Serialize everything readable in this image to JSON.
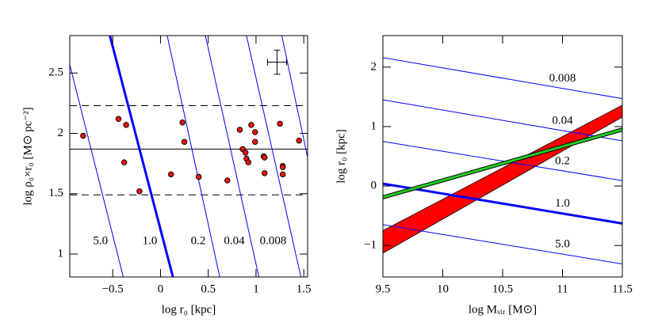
{
  "chart_data": [
    {
      "type": "scatter",
      "xlabel": "log r₀ [kpc]",
      "ylabel": "log ρ₀×r₀ [M⊙ pc⁻²]",
      "xlim": [
        -0.95,
        1.54
      ],
      "ylim": [
        0.81,
        2.81
      ],
      "xticks": [
        {
          "value": -0.5,
          "label": "−0.5"
        },
        0,
        0.5,
        1,
        1.5
      ],
      "yticks": [
        1,
        1.5,
        2,
        2.5
      ],
      "hlines": [
        {
          "y": 1.87,
          "linestyle": "solid"
        },
        {
          "y": 2.23,
          "linestyle": "dashed"
        },
        {
          "y": 1.49,
          "linestyle": "dashed"
        }
      ],
      "series": [
        {
          "name": "5.0",
          "color": "#0000ff",
          "linewidth": 1,
          "x": [
            -0.95,
            -0.39
          ],
          "y": [
            2.57,
            0.81
          ]
        },
        {
          "name": "1.0",
          "color": "#0000ff",
          "linewidth": 3,
          "x": [
            -0.53,
            0.13
          ],
          "y": [
            2.81,
            0.81
          ]
        },
        {
          "name": "0.2",
          "color": "#0000ff",
          "linewidth": 1,
          "x": [
            0.07,
            0.62
          ],
          "y": [
            2.81,
            0.81
          ]
        },
        {
          "name": "0.04",
          "color": "#0000ff",
          "linewidth": 1,
          "x": [
            0.47,
            1.03
          ],
          "y": [
            2.81,
            0.81
          ]
        },
        {
          "name": "0.008",
          "color": "#0000ff",
          "linewidth": 1,
          "x": [
            0.9,
            1.47
          ],
          "y": [
            2.81,
            0.81
          ]
        },
        {
          "color": "#0000ff",
          "linewidth": 1,
          "x": [
            1.27,
            1.54
          ],
          "y": [
            2.81,
            1.8
          ]
        }
      ],
      "points": {
        "color": "#e8140c",
        "x": [
          -0.81,
          -0.44,
          -0.36,
          -0.38,
          -0.22,
          0.11,
          0.23,
          0.25,
          0.4,
          0.7,
          0.83,
          0.86,
          0.89,
          0.9,
          0.92,
          0.95,
          0.99,
          0.99,
          1.08,
          1.09,
          1.09,
          1.25,
          1.28,
          1.28,
          1.28,
          1.45
        ],
        "y": [
          1.98,
          2.12,
          2.07,
          1.76,
          1.52,
          1.66,
          2.09,
          1.93,
          1.64,
          1.61,
          2.03,
          1.87,
          1.84,
          1.79,
          1.76,
          2.07,
          2.01,
          1.93,
          1.81,
          1.8,
          1.67,
          2.08,
          1.73,
          1.72,
          1.66,
          1.94
        ]
      },
      "errorbar": {
        "x": 1.22,
        "y": 2.59,
        "xerr": 0.1,
        "yerr": 0.1
      }
    },
    {
      "type": "line",
      "xlabel": "log Mᵥᵢᵣ [M⊙]",
      "ylabel": "log r₀ [kpc]",
      "xlim": [
        9.5,
        11.5
      ],
      "ylim": [
        -1.53,
        2.53
      ],
      "xticks": [
        9.5,
        10,
        10.5,
        11,
        11.5
      ],
      "yticks": [
        {
          "value": -1,
          "label": "−1"
        },
        0,
        1,
        2
      ],
      "fill_between": {
        "color": "#ff0000",
        "x": [
          9.5,
          11.5
        ],
        "y1": [
          -1.13,
          1.16
        ],
        "y2": [
          -0.75,
          1.36
        ]
      },
      "series": [
        {
          "name": "0.008",
          "color": "#0000ff",
          "linewidth": 1,
          "x": [
            9.5,
            11.5
          ],
          "y": [
            2.16,
            1.47
          ]
        },
        {
          "name": "0.04",
          "color": "#0000ff",
          "linewidth": 1,
          "x": [
            9.5,
            11.5
          ],
          "y": [
            1.45,
            0.76
          ]
        },
        {
          "name": "0.2",
          "color": "#0000ff",
          "linewidth": 1,
          "x": [
            9.5,
            11.5
          ],
          "y": [
            0.75,
            0.09
          ]
        },
        {
          "name": "1.0",
          "color": "#0000ff",
          "linewidth": 3,
          "x": [
            9.5,
            11.5
          ],
          "y": [
            0.04,
            -0.63
          ]
        },
        {
          "name": "5.0",
          "color": "#0000ff",
          "linewidth": 1,
          "x": [
            9.5,
            11.5
          ],
          "y": [
            -0.65,
            -1.31
          ]
        },
        {
          "color": "#22cc22",
          "linewidth": 3,
          "outline": "#000000",
          "x": [
            9.5,
            11.5
          ],
          "y": [
            -0.19,
            0.95
          ]
        }
      ]
    }
  ]
}
